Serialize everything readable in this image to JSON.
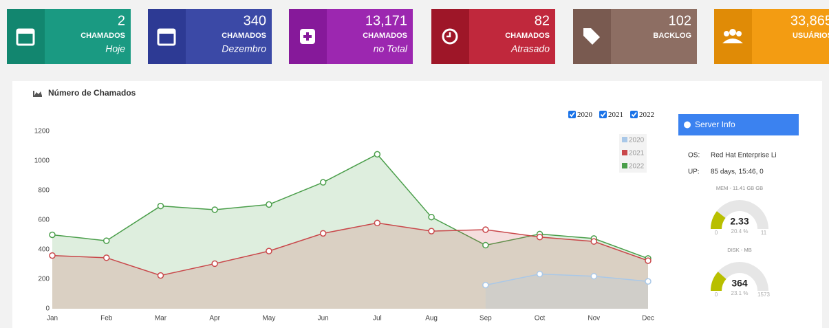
{
  "cards": [
    {
      "value": "2",
      "label": "CHAMADOS",
      "sublabel": "Hoje",
      "color": "#1a9a82",
      "dark": "#12866f"
    },
    {
      "value": "340",
      "label": "CHAMADOS",
      "sublabel": "Dezembro",
      "color": "#3b49a6",
      "dark": "#2d3a94"
    },
    {
      "value": "13,171",
      "label": "CHAMADOS",
      "sublabel": "no Total",
      "color": "#9c27b0",
      "dark": "#86199a"
    },
    {
      "value": "82",
      "label": "CHAMADOS",
      "sublabel": "Atrasado",
      "color": "#c0283c",
      "dark": "#9e1628"
    },
    {
      "value": "102",
      "label": "BACKLOG",
      "color": "#8d6e63",
      "dark": "#795a50"
    },
    {
      "value": "33,865",
      "label": "USUÁRIOS",
      "color": "#f39c12",
      "dark": "#e08b06"
    }
  ],
  "panel_title": "Número de Chamados",
  "chart_data": {
    "type": "line",
    "categories": [
      "Jan",
      "Feb",
      "Mar",
      "Apr",
      "May",
      "Jun",
      "Jul",
      "Aug",
      "Sep",
      "Oct",
      "Nov",
      "Dec"
    ],
    "series": [
      {
        "name": "2020",
        "color": "#a9c8e8",
        "values": [
          null,
          null,
          null,
          null,
          null,
          null,
          null,
          null,
          160,
          235,
          220,
          185
        ]
      },
      {
        "name": "2021",
        "color": "#c9474a",
        "values": [
          360,
          345,
          225,
          305,
          390,
          510,
          580,
          525,
          535,
          485,
          455,
          325
        ]
      },
      {
        "name": "2022",
        "color": "#4a9e4a",
        "values": [
          500,
          460,
          695,
          670,
          705,
          855,
          1045,
          620,
          430,
          505,
          475,
          340
        ]
      }
    ],
    "ylim": [
      0,
      1200
    ],
    "yticks": [
      0,
      200,
      400,
      600,
      800,
      1000,
      1200
    ],
    "grid": false
  },
  "server_info": {
    "title": "Server Info",
    "rows": [
      {
        "key": "OS:",
        "value": "Red Hat Enterprise Li"
      },
      {
        "key": "UP:",
        "value": "85 days, 15:46, 0"
      }
    ],
    "gauges": [
      {
        "title": "MEM - 11.41 GB GB",
        "value": 2.33,
        "min": 0,
        "max": 11,
        "percent": "20.4 %"
      },
      {
        "title": "DISK - MB",
        "value": 364,
        "min": 0,
        "max": 1573,
        "percent": "23.1 %"
      }
    ]
  }
}
